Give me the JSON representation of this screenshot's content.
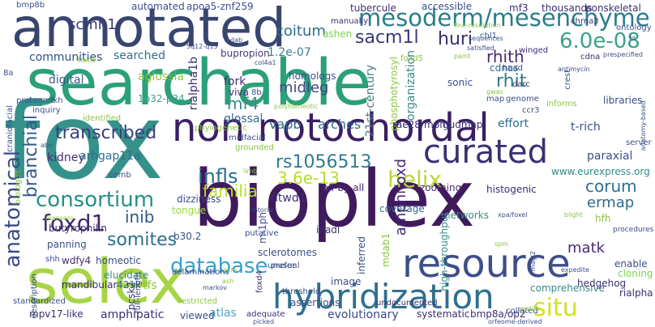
{
  "words": [
    {
      "text": "searchable",
      "color": "#2ba07a",
      "rot": 0
    },
    {
      "text": "bioplex",
      "color": "#3f1a5c",
      "rot": 0
    },
    {
      "text": "fox",
      "color": "#35928b",
      "rot": 0
    },
    {
      "text": "annotated",
      "color": "#38456f",
      "rot": 0
    },
    {
      "text": "selex",
      "color": "#a7d446",
      "rot": 0
    },
    {
      "text": "resource",
      "color": "#3d4e89",
      "rot": 0
    },
    {
      "text": "non notochordal",
      "color": "#3a1f63",
      "rot": 0
    },
    {
      "text": "hybridization",
      "color": "#2f6f8e",
      "rot": 0
    },
    {
      "text": "mesoderm/mesenchyme",
      "color": "#2b7d8b",
      "rot": 0
    },
    {
      "text": "consortium",
      "color": "#2a8e86",
      "rot": 0
    },
    {
      "text": "anatomical",
      "color": "#3a4c87",
      "rot": 90
    },
    {
      "text": "curated",
      "color": "#3b2f73",
      "rot": 0
    },
    {
      "text": "helix",
      "color": "#b8da3a",
      "rot": 0
    },
    {
      "text": "database",
      "color": "#35a0d0",
      "rot": 0
    },
    {
      "text": "situ",
      "color": "#d2e21b",
      "rot": 0
    },
    {
      "text": "foxd1",
      "color": "#422a6a",
      "rot": 0
    },
    {
      "text": "transcribed",
      "color": "#3b3f7c",
      "rot": 0
    },
    {
      "text": "somites",
      "color": "#2b6f8b",
      "rot": 0
    },
    {
      "text": "sacm1l",
      "color": "#3a3779",
      "rot": 0
    },
    {
      "text": "huri",
      "color": "#3e2d6d",
      "rot": 0
    },
    {
      "text": "6.0e-08",
      "color": "#3aa18a",
      "rot": 0
    },
    {
      "text": "rhith",
      "color": "#472d72",
      "rot": 0
    },
    {
      "text": "rhit",
      "color": "#2f7c8e",
      "rot": 0
    },
    {
      "text": "branchial",
      "color": "#2f5b8c",
      "rot": 90
    },
    {
      "text": "rs1056513",
      "color": "#307b8f",
      "rot": 0
    },
    {
      "text": "3.6e-13",
      "color": "#b5de2b",
      "rot": 0
    },
    {
      "text": "infls",
      "color": "#2a6c8a",
      "rot": 0
    },
    {
      "text": "familia",
      "color": "#b8de29",
      "rot": 0
    },
    {
      "text": "inib",
      "color": "#2c5a8c",
      "rot": 0
    },
    {
      "text": "corum",
      "color": "#2d708e",
      "rot": 0
    },
    {
      "text": "ermap",
      "color": "#2f6b8c",
      "rot": 0
    },
    {
      "text": "amphifoxd",
      "color": "#472777",
      "rot": 90
    },
    {
      "text": "matk",
      "color": "#47287a",
      "rot": 0
    },
    {
      "text": "mf4",
      "color": "#3c8c8a",
      "rot": 0
    },
    {
      "text": "arches",
      "color": "#31668e",
      "rot": 0
    },
    {
      "text": "vapb",
      "color": "#2d6b8c",
      "rot": 0
    },
    {
      "text": "midleg",
      "color": "#404688",
      "rot": 0
    },
    {
      "text": "coitum",
      "color": "#2f6d8c",
      "rot": 0
    },
    {
      "text": "scmh1",
      "color": "#3a3b7a",
      "rot": 0
    },
    {
      "text": "bupropion",
      "color": "#4a3a7a",
      "rot": 0
    },
    {
      "text": "1.2e-07",
      "color": "#3f7c8c",
      "rot": 0
    },
    {
      "text": "communities",
      "color": "#2c4f8a",
      "rot": 0
    },
    {
      "text": "searched",
      "color": "#2f6f8e",
      "rot": 0
    },
    {
      "text": "digital",
      "color": "#3b5a8a",
      "rot": 0
    },
    {
      "text": "aglossia",
      "color": "#8ac53e",
      "rot": 0
    },
    {
      "text": "fork",
      "color": "#4a2a74",
      "rot": 0
    },
    {
      "text": "viva",
      "color": "#4a2a74",
      "rot": 0
    },
    {
      "text": "glossal",
      "color": "#2f6b8c",
      "rot": 0
    },
    {
      "text": "1p32-p34",
      "color": "#3aa18a",
      "rot": 0
    },
    {
      "text": "kidney",
      "color": "#4a2a74",
      "rot": 0
    },
    {
      "text": "arhgap11a",
      "color": "#2c6c8c",
      "rot": 0
    },
    {
      "text": "21st-century",
      "color": "#4c7a8c",
      "rot": 90
    },
    {
      "text": "phosphotyrosyl",
      "color": "#8ac53e",
      "rot": 90
    },
    {
      "text": "organization",
      "color": "#3a8a86",
      "rot": 90
    },
    {
      "text": "cdnas",
      "color": "#2a6c8a",
      "rot": 0
    },
    {
      "text": "effort",
      "color": "#2a6c8a",
      "rot": 0
    },
    {
      "text": "gudmap",
      "color": "#3b2f73",
      "rot": 0
    },
    {
      "text": "rae28/mph1",
      "color": "#3b2f73",
      "rot": 0
    },
    {
      "text": "t-rich",
      "color": "#3b4f8c",
      "rot": 0
    },
    {
      "text": "zooming",
      "color": "#4a2a74",
      "rot": 0
    },
    {
      "text": "histogenic",
      "color": "#3b2f73",
      "rot": 0
    },
    {
      "text": "paraxial",
      "color": "#3b4f8c",
      "rot": 0
    },
    {
      "text": "www.eurexpress.org",
      "color": "#2c8c86",
      "rot": 0
    },
    {
      "text": "hfh",
      "color": "#8ac53e",
      "rot": 0
    },
    {
      "text": "enable",
      "color": "#3b4f8c",
      "rot": 0
    },
    {
      "text": "cloning",
      "color": "#7ed34f",
      "rot": 0
    },
    {
      "text": "libraries",
      "color": "#3a4c87",
      "rot": 0
    },
    {
      "text": "dizziness",
      "color": "#3a4c87",
      "rot": 0
    },
    {
      "text": "tongue",
      "color": "#9bd93c",
      "rot": 0
    },
    {
      "text": "butyrophilin",
      "color": "#3b2f73",
      "rot": 0
    },
    {
      "text": "dtwd1",
      "color": "#3b2f73",
      "rot": 0
    },
    {
      "text": "all-by-all",
      "color": "#4a2a74",
      "rot": 0
    },
    {
      "text": "networks",
      "color": "#3a8a86",
      "rot": 0
    },
    {
      "text": "high-throughput",
      "color": "#3a8a86",
      "rot": 90
    },
    {
      "text": "coverage",
      "color": "#2a6c8a",
      "rot": 0
    },
    {
      "text": "inadl",
      "color": "#3b2f73",
      "rot": 0
    },
    {
      "text": "mdab1",
      "color": "#8ac53e",
      "rot": 90
    },
    {
      "text": "inferred",
      "color": "#3a4c87",
      "rot": 90
    },
    {
      "text": "panning",
      "color": "#3b4f8c",
      "rot": 0
    },
    {
      "text": "shh",
      "color": "#3b4f8c",
      "rot": 0
    },
    {
      "text": "wdfy4",
      "color": "#4a2a74",
      "rot": 0
    },
    {
      "text": "homeotic",
      "color": "#3b4f8c",
      "rot": 0
    },
    {
      "text": "mandibular",
      "color": "#3b2f73",
      "rot": 0
    },
    {
      "text": "421k",
      "color": "#2f6b8c",
      "rot": 0
    },
    {
      "text": "tfs",
      "color": "#8ac53e",
      "rot": 0
    },
    {
      "text": "b30.2",
      "color": "#3b4f8c",
      "rot": 0
    },
    {
      "text": "description",
      "color": "#3a4c87",
      "rot": 90
    },
    {
      "text": "mpv17-like",
      "color": "#3b2f73",
      "rot": 0
    },
    {
      "text": "amphipatic",
      "color": "#3b2f73",
      "rot": 0
    },
    {
      "text": "atlas",
      "color": "#4aa3c8",
      "rot": 0
    },
    {
      "text": "adequate",
      "color": "#3b2f73",
      "rot": 0
    },
    {
      "text": "evolutionary",
      "color": "#3a4c87",
      "rot": 0
    },
    {
      "text": "systematic",
      "color": "#3b2f73",
      "rot": 0
    },
    {
      "text": "bmp8a/op2",
      "color": "#3b2f73",
      "rot": 0
    },
    {
      "text": "comprehensive",
      "color": "#3a8a86",
      "rot": 0
    },
    {
      "text": "hedgehog",
      "color": "#3b2f73",
      "rot": 0
    },
    {
      "text": "rialpha",
      "color": "#3b2f73",
      "rot": 0
    },
    {
      "text": "assertions",
      "color": "#3a4c87",
      "rot": 0
    },
    {
      "text": "image",
      "color": "#3a4c87",
      "rot": 0
    },
    {
      "text": "elucidate",
      "color": "#3a8a86",
      "rot": 0
    },
    {
      "text": "pcsk2",
      "color": "#3b2f73",
      "rot": 90
    },
    {
      "text": "rialpha1b",
      "color": "#3b2f73",
      "rot": 90
    },
    {
      "text": "homologs",
      "color": "#3b4f8c",
      "rot": 0
    },
    {
      "text": "automated",
      "color": "#3b4f8c",
      "rot": 0
    },
    {
      "text": "apoa5-znf259",
      "color": "#3b4f8c",
      "rot": 0
    },
    {
      "text": "bmp8b",
      "color": "#3b4f8c",
      "rot": 0
    },
    {
      "text": "tubercule",
      "color": "#3b2f73",
      "rot": 0
    },
    {
      "text": "accessible",
      "color": "#3a4c87",
      "rot": 0
    },
    {
      "text": "thousands",
      "color": "#3b2f73",
      "rot": 0
    },
    {
      "text": "nonskeletal",
      "color": "#3b2f73",
      "rot": 0
    },
    {
      "text": "mf3",
      "color": "#3b2f73",
      "rot": 0
    },
    {
      "text": "ashen",
      "color": "#7ed34f",
      "rot": 0
    },
    {
      "text": "manually",
      "color": "#3b2f73",
      "rot": 0
    },
    {
      "text": "chrna3",
      "color": "#3b2f73",
      "rot": 0
    },
    {
      "text": "ontology",
      "color": "#3b4f8c",
      "rot": 0
    },
    {
      "text": "sonic",
      "color": "#3b4f8c",
      "rot": 0
    },
    {
      "text": "head",
      "color": "#3b4f8c",
      "rot": 0
    },
    {
      "text": "darc",
      "color": "#3b2f73",
      "rot": 0
    },
    {
      "text": "winged",
      "color": "#3b2f73",
      "rot": 0
    },
    {
      "text": "cdna",
      "color": "#3b2f73",
      "rot": 0
    },
    {
      "text": "genome",
      "color": "#3b4f8c",
      "rot": 0
    },
    {
      "text": "map",
      "color": "#3b4f8c",
      "rot": 0
    },
    {
      "text": "crest",
      "color": "#3b4f8c",
      "rot": 90
    },
    {
      "text": "proteome",
      "color": "#3b4f8c",
      "rot": 0
    },
    {
      "text": "fkh",
      "color": "#3b4f8c",
      "rot": 0
    },
    {
      "text": "craniofacial",
      "color": "#3b4f8c",
      "rot": 90
    },
    {
      "text": "inquiry",
      "color": "#3b4f8c",
      "rot": 0
    },
    {
      "text": "identified",
      "color": "#8ac53e",
      "rot": 0
    },
    {
      "text": "biologist",
      "color": "#8ac53e",
      "rot": 90
    },
    {
      "text": "foxd",
      "color": "#8ac53e",
      "rot": 0
    },
    {
      "text": "foxd5",
      "color": "#8ac53e",
      "rot": 0
    },
    {
      "text": "chl1",
      "color": "#3b4f8c",
      "rot": 0
    },
    {
      "text": "8a",
      "color": "#3b4f8c",
      "rot": 0
    },
    {
      "text": "8b",
      "color": "#3b4f8c",
      "rot": 0
    },
    {
      "text": "ccr3",
      "color": "#3b4f8c",
      "rot": 0
    },
    {
      "text": "informs",
      "color": "#8ac53e",
      "rot": 0
    },
    {
      "text": "server",
      "color": "#3b4f8c",
      "rot": 0
    },
    {
      "text": "procedures",
      "color": "#3b4f8c",
      "rot": 0
    },
    {
      "text": "standardized",
      "color": "#3b4f8c",
      "rot": 0
    },
    {
      "text": "restricted",
      "color": "#8ac53e",
      "rot": 0
    },
    {
      "text": "viewed",
      "color": "#3a4c87",
      "rot": 0
    },
    {
      "text": "threshold",
      "color": "#3a4c87",
      "rot": 0
    },
    {
      "text": "undocumented",
      "color": "#3b2f73",
      "rot": 0
    },
    {
      "text": "full-length",
      "color": "#3b4f8c",
      "rot": 90
    },
    {
      "text": "prefer",
      "color": "#3b4f8c",
      "rot": 0
    },
    {
      "text": "foxd4",
      "color": "#3b2f73",
      "rot": 90
    },
    {
      "text": "m-1ph",
      "color": "#3b4f8c",
      "rot": 90
    },
    {
      "text": "sclerotomes",
      "color": "#3b4f8c",
      "rot": 0
    },
    {
      "text": "putative",
      "color": "#3b4f8c",
      "rot": 0
    },
    {
      "text": "delaminations",
      "color": "#3b4f8c",
      "rot": 0
    },
    {
      "text": "comb",
      "color": "#3b4f8c",
      "rot": 0
    },
    {
      "text": "phylogenetic",
      "color": "#8ac53e",
      "rot": 0
    },
    {
      "text": "abo",
      "color": "#3b4f8c",
      "rot": 0
    },
    {
      "text": "mansoni",
      "color": "#8ac53e",
      "rot": 0
    },
    {
      "text": "midfacial",
      "color": "#3b4f8c",
      "rot": 0
    },
    {
      "text": "grounded",
      "color": "#8ac53e",
      "rot": 0
    },
    {
      "text": "unusual",
      "color": "#3b4f8c",
      "rot": 0
    },
    {
      "text": "collated",
      "color": "#3b4f8c",
      "rot": 0
    },
    {
      "text": "orfeome-derived",
      "color": "#3b4f8c",
      "rot": 0
    },
    {
      "text": "picked",
      "color": "#3b4f8c",
      "rot": 0
    },
    {
      "text": "expedite",
      "color": "#3b4f8c",
      "rot": 0
    },
    {
      "text": "xpa/foxel",
      "color": "#3b4f8c",
      "rot": 0
    },
    {
      "text": "spm",
      "color": "#8ac53e",
      "rot": 0
    },
    {
      "text": "sequences",
      "color": "#3b4f8c",
      "rot": 0
    },
    {
      "text": "satisfied",
      "color": "#3b4f8c",
      "rot": 0
    },
    {
      "text": "paint",
      "color": "#8ac53e",
      "rot": 0
    },
    {
      "text": "prespecified",
      "color": "#3b4f8c",
      "rot": 0
    },
    {
      "text": "antimycin",
      "color": "#3b4f8c",
      "rot": 0
    },
    {
      "text": "col4a1",
      "color": "#3b4f8c",
      "rot": 0
    },
    {
      "text": "5q12-q13",
      "color": "#3b4f8c",
      "rot": 0
    },
    {
      "text": "polyhomeotic",
      "color": "#8ac53e",
      "rot": 0
    },
    {
      "text": "fine-resolution",
      "color": "#8ac53e",
      "rot": 0
    },
    {
      "text": "markov",
      "color": "#3b4f8c",
      "rot": 0
    },
    {
      "text": "blight",
      "color": "#8ac53e",
      "rot": 0
    },
    {
      "text": "magl2",
      "color": "#3b4f8c",
      "rot": 90
    },
    {
      "text": "anatomy-based",
      "color": "#3b4f8c",
      "rot": 90
    },
    {
      "text": "fd",
      "color": "#3b4f8c",
      "rot": 0
    },
    {
      "text": "gwas",
      "color": "#8ac53e",
      "rot": 0
    },
    {
      "text": "dab",
      "color": "#3b4f8c",
      "rot": 0
    },
    {
      "text": "mtorib",
      "color": "#3b4f8c",
      "rot": 0
    },
    {
      "text": "scm",
      "color": "#8ac53e",
      "rot": 0
    },
    {
      "text": "ash",
      "color": "#8ac53e",
      "rot": 0
    },
    {
      "text": "limb",
      "color": "#8ac53e",
      "rot": 0
    },
    {
      "text": "motifs",
      "color": "#8ac53e",
      "rot": 0
    }
  ]
}
